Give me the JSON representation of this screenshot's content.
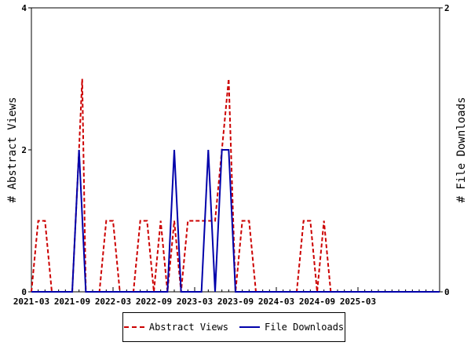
{
  "chart_data": {
    "type": "line",
    "ylabel_left": "# Abstract Views",
    "ylabel_right": "# File Downloads",
    "left_ylim": [
      0,
      4
    ],
    "right_ylim": [
      0,
      2
    ],
    "left_ticks": [
      "0",
      "2",
      "4"
    ],
    "right_ticks": [
      "0",
      "2"
    ],
    "xlim": [
      "2021-03",
      "2026-03"
    ],
    "x_ticks": [
      "2021-03",
      "2021-09",
      "2022-03",
      "2022-09",
      "2023-03",
      "2023-09",
      "2024-03",
      "2024-09",
      "2025-03"
    ],
    "grid": false,
    "legend_position": "bottom",
    "series": [
      {
        "name": "Abstract Views",
        "axis": "left",
        "color": "#cc0000",
        "style": "dashed",
        "points": [
          [
            "2021-03",
            0
          ],
          [
            "2021-04",
            1
          ],
          [
            "2021-05",
            1
          ],
          [
            "2021-06",
            0
          ],
          [
            "2021-07",
            0
          ],
          [
            "2021-08",
            0
          ],
          [
            "2021-09",
            0
          ],
          [
            "2021-10",
            2
          ],
          [
            "2021-10-15",
            3
          ],
          [
            "2021-11",
            0
          ],
          [
            "2021-12",
            0
          ],
          [
            "2022-01",
            0
          ],
          [
            "2022-02",
            1
          ],
          [
            "2022-03",
            1
          ],
          [
            "2022-04",
            0
          ],
          [
            "2022-05",
            0
          ],
          [
            "2022-06",
            0
          ],
          [
            "2022-07",
            1
          ],
          [
            "2022-08",
            1
          ],
          [
            "2022-09",
            0
          ],
          [
            "2022-10",
            1
          ],
          [
            "2022-11",
            0
          ],
          [
            "2022-12",
            1
          ],
          [
            "2023-01",
            0
          ],
          [
            "2023-02",
            1
          ],
          [
            "2023-03",
            1
          ],
          [
            "2023-04",
            1
          ],
          [
            "2023-05",
            1
          ],
          [
            "2023-06",
            1
          ],
          [
            "2023-07",
            2
          ],
          [
            "2023-08",
            3
          ],
          [
            "2023-09",
            0
          ],
          [
            "2023-10",
            1
          ],
          [
            "2023-11",
            1
          ],
          [
            "2023-12",
            0
          ],
          [
            "2024-01",
            0
          ],
          [
            "2024-02",
            0
          ],
          [
            "2024-03",
            0
          ],
          [
            "2024-04",
            0
          ],
          [
            "2024-05",
            0
          ],
          [
            "2024-06",
            0
          ],
          [
            "2024-07",
            1
          ],
          [
            "2024-08",
            1
          ],
          [
            "2024-09",
            0
          ],
          [
            "2024-10",
            1
          ],
          [
            "2024-11",
            0
          ],
          [
            "2024-12",
            0
          ],
          [
            "2025-01",
            0
          ],
          [
            "2025-02",
            0
          ],
          [
            "2025-03",
            0
          ],
          [
            "2025-04",
            0
          ],
          [
            "2025-05",
            0
          ],
          [
            "2025-06",
            0
          ],
          [
            "2025-07",
            0
          ],
          [
            "2025-08",
            0
          ],
          [
            "2025-09",
            0
          ],
          [
            "2025-10",
            0
          ],
          [
            "2025-11",
            0
          ],
          [
            "2025-12",
            0
          ],
          [
            "2026-01",
            0
          ],
          [
            "2026-02",
            0
          ],
          [
            "2026-03",
            0
          ]
        ]
      },
      {
        "name": "File Downloads",
        "axis": "right",
        "color": "#0000aa",
        "style": "solid",
        "points": [
          [
            "2021-03",
            0
          ],
          [
            "2021-04",
            0
          ],
          [
            "2021-05",
            0
          ],
          [
            "2021-06",
            0
          ],
          [
            "2021-07",
            0
          ],
          [
            "2021-08",
            0
          ],
          [
            "2021-09",
            0
          ],
          [
            "2021-10",
            1
          ],
          [
            "2021-11",
            0
          ],
          [
            "2021-12",
            0
          ],
          [
            "2022-01",
            0
          ],
          [
            "2022-02",
            0
          ],
          [
            "2022-03",
            0
          ],
          [
            "2022-04",
            0
          ],
          [
            "2022-05",
            0
          ],
          [
            "2022-06",
            0
          ],
          [
            "2022-07",
            0
          ],
          [
            "2022-08",
            0
          ],
          [
            "2022-09",
            0
          ],
          [
            "2022-10",
            0
          ],
          [
            "2022-11",
            0
          ],
          [
            "2022-12",
            1
          ],
          [
            "2023-01",
            0
          ],
          [
            "2023-02",
            0
          ],
          [
            "2023-03",
            0
          ],
          [
            "2023-04",
            0
          ],
          [
            "2023-05",
            1
          ],
          [
            "2023-06",
            0
          ],
          [
            "2023-07",
            1
          ],
          [
            "2023-08",
            1
          ],
          [
            "2023-09",
            0
          ],
          [
            "2023-10",
            0
          ],
          [
            "2023-11",
            0
          ],
          [
            "2023-12",
            0
          ],
          [
            "2024-01",
            0
          ],
          [
            "2024-02",
            0
          ],
          [
            "2024-03",
            0
          ],
          [
            "2024-04",
            0
          ],
          [
            "2024-05",
            0
          ],
          [
            "2024-06",
            0
          ],
          [
            "2024-07",
            0
          ],
          [
            "2024-08",
            0
          ],
          [
            "2024-09",
            0
          ],
          [
            "2024-10",
            0
          ],
          [
            "2024-11",
            0
          ],
          [
            "2024-12",
            0
          ],
          [
            "2025-01",
            0
          ],
          [
            "2025-02",
            0
          ],
          [
            "2025-03",
            0
          ],
          [
            "2025-04",
            0
          ],
          [
            "2025-05",
            0
          ],
          [
            "2025-06",
            0
          ],
          [
            "2025-07",
            0
          ],
          [
            "2025-08",
            0
          ],
          [
            "2025-09",
            0
          ],
          [
            "2025-10",
            0
          ],
          [
            "2025-11",
            0
          ],
          [
            "2025-12",
            0
          ],
          [
            "2026-01",
            0
          ],
          [
            "2026-02",
            0
          ],
          [
            "2026-03",
            0
          ]
        ]
      }
    ]
  }
}
